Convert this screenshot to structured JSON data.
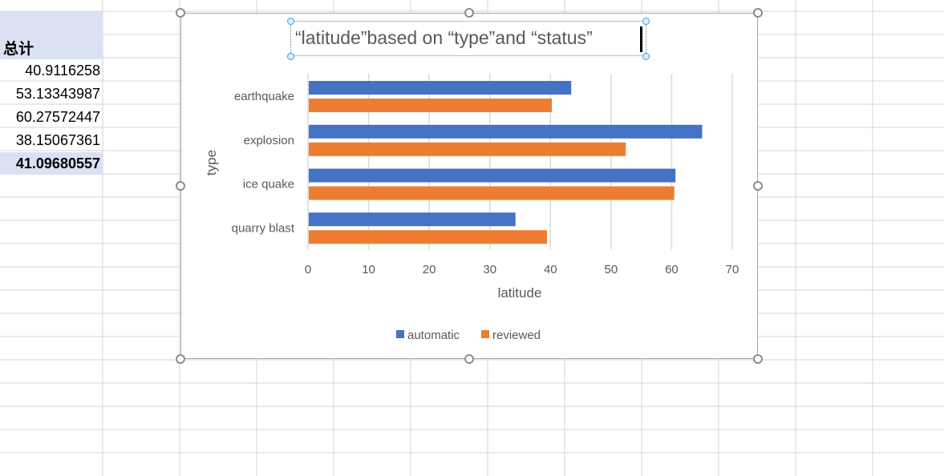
{
  "sheet": {
    "column_header": "总计",
    "values": [
      "40.9116258",
      "53.13343987",
      "60.27572447",
      "38.15067361"
    ],
    "total": "41.09680557"
  },
  "chart": {
    "title": "“latitude”based on “type”and “status”"
  },
  "chart_data": {
    "type": "bar",
    "orientation": "horizontal",
    "categories": [
      "earthquake",
      "explosion",
      "ice quake",
      "quarry blast"
    ],
    "series": [
      {
        "name": "automatic",
        "values": [
          43.3,
          64.9,
          60.5,
          34.1
        ]
      },
      {
        "name": "reviewed",
        "values": [
          40.1,
          52.3,
          60.3,
          39.3
        ]
      }
    ],
    "xlabel": "latitude",
    "ylabel": "type",
    "xlim": [
      0,
      70
    ],
    "xticks": [
      "0",
      "10",
      "20",
      "30",
      "40",
      "50",
      "60",
      "70"
    ],
    "grid": true,
    "legend_position": "bottom",
    "colors": {
      "automatic": "#4472c4",
      "reviewed": "#ed7d31"
    }
  }
}
